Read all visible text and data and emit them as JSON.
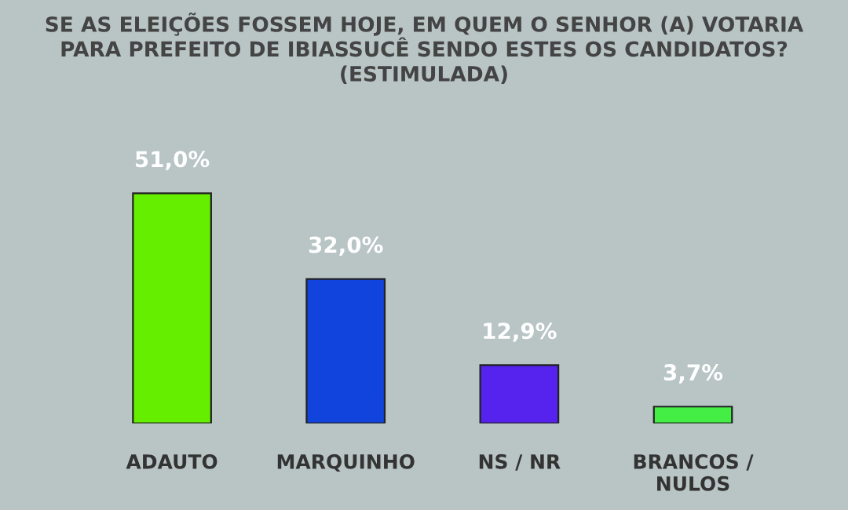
{
  "chart_data": {
    "type": "bar",
    "title": "SE AS ELEIÇÕES FOSSEM HOJE, EM QUEM O SENHOR (A) VOTARIA\nPARA PREFEITO DE IBIASSUCÊ SENDO ESTES OS CANDIDATOS?\n(ESTIMULADA)",
    "categories": [
      "ADAUTO",
      "MARQUINHO",
      "NS / NR",
      "BRANCOS /\nNULOS"
    ],
    "values": [
      51.0,
      32.0,
      12.9,
      3.7
    ],
    "colors": [
      "#66ee00",
      "#1144dd",
      "#5522ee",
      "#44ee44"
    ],
    "value_labels": [
      "51,0%",
      "32,0%",
      "12,9%",
      "3,7%"
    ]
  }
}
